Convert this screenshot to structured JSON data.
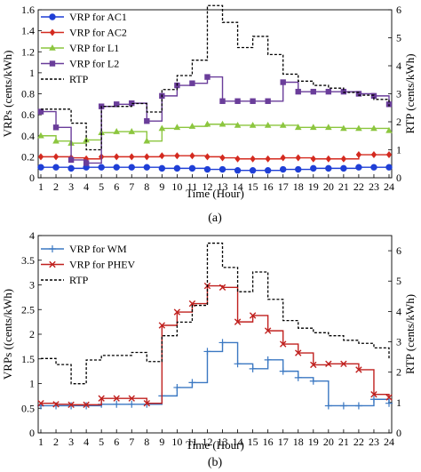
{
  "chart_data": [
    {
      "type": "line",
      "caption": "(a)",
      "xlabel": "Time (Hour)",
      "ylabel": "VRPs (cents/kWh)",
      "y2label": "RTP (cents/kWh)",
      "x": [
        1,
        2,
        3,
        4,
        5,
        6,
        7,
        8,
        9,
        10,
        11,
        12,
        13,
        14,
        15,
        16,
        17,
        18,
        19,
        20,
        21,
        22,
        23,
        24
      ],
      "x_ticks": [
        "1",
        "2",
        "3",
        "4",
        "5",
        "6",
        "7",
        "8",
        "9",
        "10",
        "11",
        "12",
        "13",
        "14",
        "15",
        "16",
        "17",
        "18",
        "19",
        "20",
        "21",
        "22",
        "23",
        "24"
      ],
      "ylim": [
        0,
        1.6
      ],
      "y_ticks": [
        "0",
        "0.2",
        "0.4",
        "0.6",
        "0.8",
        "1",
        "1.2",
        "1.4",
        "1.6"
      ],
      "y2lim": [
        0,
        6
      ],
      "y2_ticks": [
        "0",
        "1",
        "2",
        "3",
        "4",
        "5",
        "6"
      ],
      "legend_position": "top-left",
      "series": [
        {
          "name": "VRP for AC1",
          "color": "#1f3fd6",
          "marker": "circle",
          "axis": "left",
          "step": true,
          "values": [
            0.1,
            0.1,
            0.09,
            0.1,
            0.1,
            0.1,
            0.1,
            0.1,
            0.09,
            0.09,
            0.09,
            0.08,
            0.08,
            0.07,
            0.07,
            0.07,
            0.08,
            0.08,
            0.09,
            0.09,
            0.09,
            0.1,
            0.1,
            0.1
          ]
        },
        {
          "name": "VRP for AC2",
          "color": "#d42a1f",
          "marker": "diamond",
          "axis": "left",
          "step": true,
          "values": [
            0.2,
            0.2,
            0.19,
            0.18,
            0.2,
            0.2,
            0.2,
            0.2,
            0.21,
            0.21,
            0.21,
            0.2,
            0.19,
            0.18,
            0.18,
            0.18,
            0.19,
            0.19,
            0.18,
            0.18,
            0.18,
            0.22,
            0.22,
            0.22
          ]
        },
        {
          "name": "VRP for L1",
          "color": "#8cc63f",
          "marker": "triangle",
          "axis": "left",
          "step": true,
          "values": [
            0.4,
            0.35,
            0.33,
            0.36,
            0.43,
            0.44,
            0.44,
            0.35,
            0.47,
            0.48,
            0.49,
            0.51,
            0.51,
            0.5,
            0.5,
            0.5,
            0.5,
            0.48,
            0.48,
            0.48,
            0.47,
            0.47,
            0.47,
            0.45
          ]
        },
        {
          "name": "VRP for L2",
          "color": "#6a3d9a",
          "marker": "square",
          "axis": "left",
          "step": true,
          "values": [
            0.63,
            0.48,
            0.17,
            0.14,
            0.68,
            0.7,
            0.71,
            0.54,
            0.78,
            0.88,
            0.9,
            0.96,
            0.73,
            0.73,
            0.73,
            0.73,
            0.91,
            0.82,
            0.82,
            0.82,
            0.82,
            0.8,
            0.78,
            0.7
          ]
        },
        {
          "name": "RTP",
          "color": "#000000",
          "marker": "none",
          "dash": true,
          "axis": "right",
          "step": true,
          "values": [
            2.45,
            2.45,
            1.95,
            1.0,
            2.55,
            2.55,
            2.65,
            2.35,
            3.15,
            3.65,
            4.2,
            6.15,
            5.55,
            4.65,
            5.05,
            4.4,
            3.7,
            3.45,
            3.3,
            3.2,
            3.05,
            2.95,
            2.8,
            2.55
          ]
        }
      ]
    },
    {
      "type": "line",
      "caption": "(b)",
      "xlabel": "Time (Hour)",
      "ylabel": "VRPs ((cents/kWh)",
      "y2label": "RTP (cents/kWh)",
      "x": [
        1,
        2,
        3,
        4,
        5,
        6,
        7,
        8,
        9,
        10,
        11,
        12,
        13,
        14,
        15,
        16,
        17,
        18,
        19,
        20,
        21,
        22,
        23,
        24
      ],
      "x_ticks": [
        "1",
        "2",
        "3",
        "4",
        "5",
        "6",
        "7",
        "8",
        "9",
        "10",
        "11",
        "12",
        "13",
        "14",
        "15",
        "16",
        "17",
        "18",
        "19",
        "20",
        "21",
        "22",
        "23",
        "24"
      ],
      "ylim": [
        0,
        4
      ],
      "y_ticks": [
        "0",
        "0.5",
        "1",
        "1.5",
        "2",
        "2.5",
        "3",
        "3.5",
        "4"
      ],
      "y2lim": [
        0,
        6.5
      ],
      "y2_ticks": [
        "0",
        "1",
        "2",
        "3",
        "4",
        "5",
        "6"
      ],
      "legend_position": "top-left",
      "series": [
        {
          "name": "VRP for WM",
          "color": "#3b78c2",
          "marker": "plus",
          "axis": "left",
          "step": true,
          "values": [
            0.55,
            0.55,
            0.55,
            0.55,
            0.58,
            0.58,
            0.58,
            0.58,
            0.75,
            0.92,
            1.02,
            1.65,
            1.83,
            1.4,
            1.3,
            1.48,
            1.25,
            1.12,
            1.05,
            0.55,
            0.55,
            0.55,
            0.68,
            0.6
          ]
        },
        {
          "name": "VRP for PHEV",
          "color": "#c0211f",
          "marker": "x",
          "axis": "left",
          "step": true,
          "values": [
            0.6,
            0.58,
            0.57,
            0.57,
            0.7,
            0.7,
            0.7,
            0.6,
            2.18,
            2.45,
            2.62,
            2.98,
            2.95,
            2.25,
            2.38,
            2.07,
            1.8,
            1.62,
            1.38,
            1.4,
            1.4,
            1.28,
            0.78,
            0.72
          ]
        },
        {
          "name": "RTP",
          "color": "#000000",
          "marker": "none",
          "dash": true,
          "axis": "right",
          "step": true,
          "values": [
            2.45,
            2.25,
            1.62,
            2.4,
            2.55,
            2.55,
            2.65,
            2.35,
            3.2,
            3.65,
            4.2,
            6.25,
            5.45,
            4.65,
            5.3,
            4.4,
            3.7,
            3.45,
            3.3,
            3.2,
            3.05,
            2.95,
            2.8,
            2.45
          ]
        }
      ]
    }
  ]
}
